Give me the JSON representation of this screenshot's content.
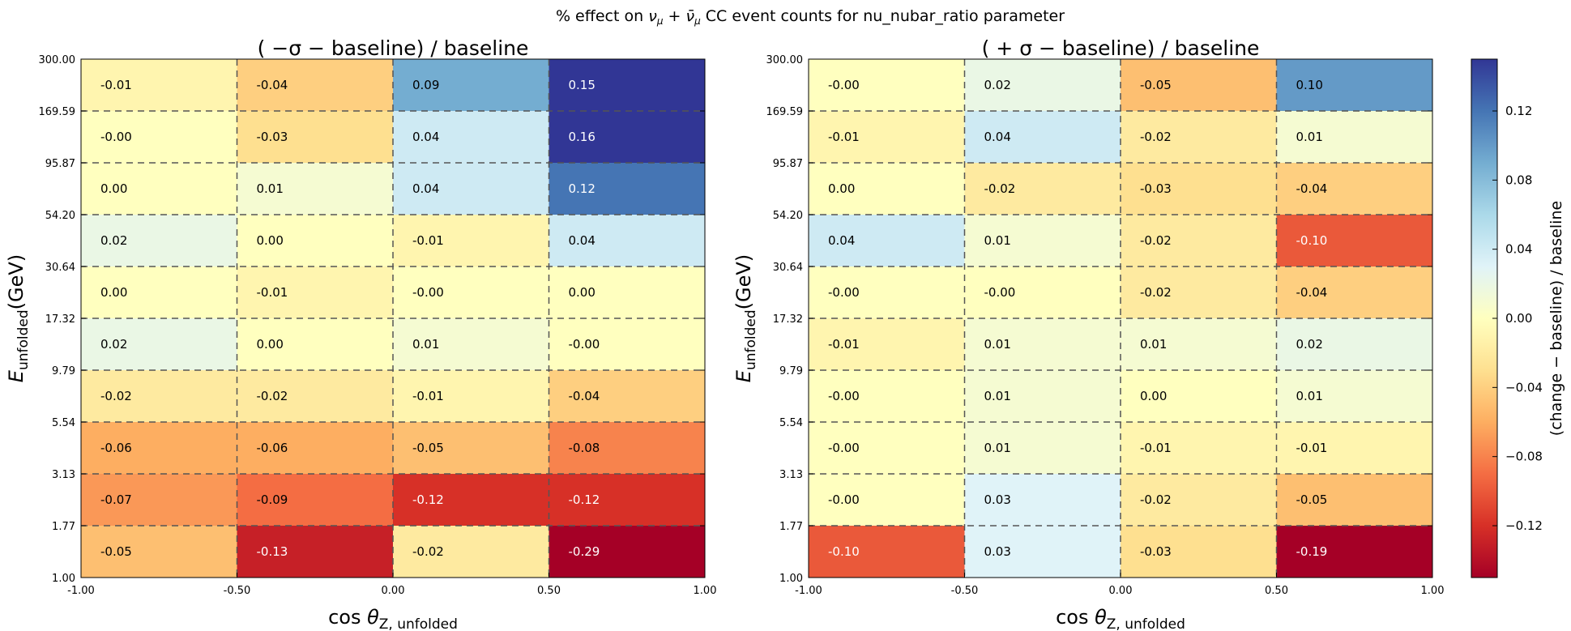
{
  "figure_title": "% effect on νμ + ν̄μ CC event counts for nu_nubar_ratio parameter",
  "colors": {
    "scale_min": "#a50026",
    "scale_max": "#313695",
    "grid_line": "#555555"
  },
  "colorbar": {
    "label": "(change − baseline) / baseline",
    "range": [
      -0.15,
      0.15
    ],
    "ticks": [
      "0.12",
      "0.08",
      "0.04",
      "0.00",
      "−0.04",
      "−0.08",
      "−0.12"
    ],
    "tick_values": [
      0.12,
      0.08,
      0.04,
      0.0,
      -0.04,
      -0.08,
      -0.12
    ],
    "colormap": "RdYlBu"
  },
  "chart_data": [
    {
      "type": "heatmap",
      "title": "( −σ − baseline) / baseline",
      "xlabel": "cos θZ, unfolded",
      "ylabel": "E unfolded (GeV)",
      "x_ticks": [
        "-1.00",
        "-0.50",
        "0.00",
        "0.50",
        "1.00"
      ],
      "y_ticks": [
        "300.00",
        "169.59",
        "95.87",
        "54.20",
        "30.64",
        "17.32",
        "9.79",
        "5.54",
        "3.13",
        "1.77",
        "1.00"
      ],
      "y_scale": "log",
      "grid": true,
      "rows": [
        [
          "-0.01",
          "-0.04",
          "0.09",
          "0.15"
        ],
        [
          "-0.00",
          "-0.03",
          "0.04",
          "0.16"
        ],
        [
          "0.00",
          "0.01",
          "0.04",
          "0.12"
        ],
        [
          "0.02",
          "0.00",
          "-0.01",
          "0.04"
        ],
        [
          "0.00",
          "-0.01",
          "-0.00",
          "0.00"
        ],
        [
          "0.02",
          "0.00",
          "0.01",
          "-0.00"
        ],
        [
          "-0.02",
          "-0.02",
          "-0.01",
          "-0.04"
        ],
        [
          "-0.06",
          "-0.06",
          "-0.05",
          "-0.08"
        ],
        [
          "-0.07",
          "-0.09",
          "-0.12",
          "-0.12"
        ],
        [
          "-0.05",
          "-0.13",
          "-0.02",
          "-0.29"
        ]
      ]
    },
    {
      "type": "heatmap",
      "title": "( + σ − baseline) / baseline",
      "xlabel": "cos θZ, unfolded",
      "ylabel": "E unfolded (GeV)",
      "x_ticks": [
        "-1.00",
        "-0.50",
        "0.00",
        "0.50",
        "1.00"
      ],
      "y_ticks": [
        "300.00",
        "169.59",
        "95.87",
        "54.20",
        "30.64",
        "17.32",
        "9.79",
        "5.54",
        "3.13",
        "1.77",
        "1.00"
      ],
      "y_scale": "log",
      "grid": true,
      "rows": [
        [
          "-0.00",
          "0.02",
          "-0.05",
          "0.10"
        ],
        [
          "-0.01",
          "0.04",
          "-0.02",
          "0.01"
        ],
        [
          "0.00",
          "-0.02",
          "-0.03",
          "-0.04"
        ],
        [
          "0.04",
          "0.01",
          "-0.02",
          "-0.10"
        ],
        [
          "-0.00",
          "-0.00",
          "-0.02",
          "-0.04"
        ],
        [
          "-0.01",
          "0.01",
          "0.01",
          "0.02"
        ],
        [
          "-0.00",
          "0.01",
          "0.00",
          "0.01"
        ],
        [
          "-0.00",
          "0.01",
          "-0.01",
          "-0.01"
        ],
        [
          "-0.00",
          "0.03",
          "-0.02",
          "-0.05"
        ],
        [
          "-0.10",
          "0.03",
          "-0.03",
          "-0.19"
        ]
      ]
    }
  ]
}
